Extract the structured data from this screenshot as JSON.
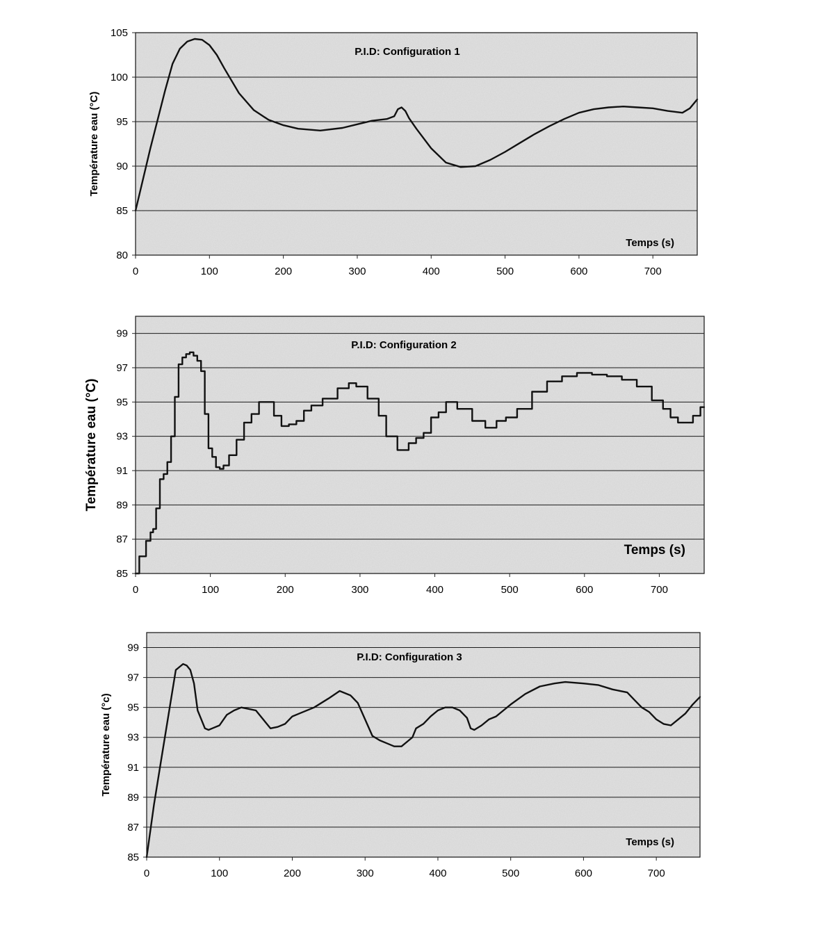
{
  "chart_data": [
    {
      "type": "line",
      "title": "P.I.D: Configuration 1",
      "xlabel": "Temps (s)",
      "ylabel": "Température eau (°C)",
      "xlim": [
        0,
        760
      ],
      "ylim": [
        80,
        105
      ],
      "xticks": [
        0,
        100,
        200,
        300,
        400,
        500,
        600,
        700
      ],
      "yticks": [
        80,
        85,
        90,
        95,
        100,
        105
      ],
      "grid": true,
      "series": [
        {
          "x": [
            0,
            20,
            40,
            50,
            60,
            70,
            80,
            90,
            100,
            110,
            120,
            140,
            160,
            180,
            200,
            220,
            250,
            280,
            300,
            320,
            340,
            350,
            355,
            360,
            365,
            370,
            380,
            400,
            420,
            440,
            460,
            480,
            500,
            520,
            540,
            560,
            580,
            600,
            620,
            640,
            660,
            680,
            700,
            720,
            740,
            750,
            760
          ],
          "y": [
            85.0,
            92.0,
            98.5,
            101.5,
            103.2,
            104.0,
            104.3,
            104.2,
            103.6,
            102.5,
            101.0,
            98.2,
            96.3,
            95.2,
            94.6,
            94.2,
            94.0,
            94.3,
            94.7,
            95.1,
            95.3,
            95.6,
            96.4,
            96.6,
            96.2,
            95.4,
            94.2,
            92.0,
            90.4,
            89.9,
            90.0,
            90.7,
            91.6,
            92.6,
            93.6,
            94.5,
            95.3,
            96.0,
            96.4,
            96.6,
            96.7,
            96.6,
            96.5,
            96.2,
            96.0,
            96.5,
            97.5
          ]
        }
      ]
    },
    {
      "type": "line",
      "title": "P.I.D: Configuration 2",
      "xlabel": "Temps (s)",
      "ylabel": "Température eau (°C)",
      "xlim": [
        0,
        760
      ],
      "ylim": [
        85,
        100
      ],
      "xticks": [
        0,
        100,
        200,
        300,
        400,
        500,
        600,
        700
      ],
      "yticks": [
        85,
        87,
        89,
        91,
        93,
        95,
        97,
        99
      ],
      "grid": true,
      "series": [
        {
          "x": [
            0,
            10,
            18,
            22,
            25,
            30,
            35,
            40,
            45,
            50,
            55,
            60,
            65,
            70,
            75,
            80,
            85,
            90,
            95,
            100,
            105,
            110,
            115,
            120,
            130,
            140,
            150,
            160,
            170,
            180,
            190,
            200,
            210,
            220,
            230,
            240,
            260,
            280,
            290,
            300,
            320,
            330,
            340,
            360,
            370,
            380,
            390,
            400,
            410,
            420,
            440,
            460,
            475,
            490,
            500,
            520,
            540,
            560,
            580,
            600,
            620,
            640,
            660,
            680,
            700,
            710,
            720,
            730,
            740,
            750,
            760
          ],
          "y": [
            85.0,
            86.0,
            86.9,
            87.4,
            87.6,
            88.8,
            90.5,
            90.8,
            91.5,
            93.0,
            95.3,
            97.2,
            97.6,
            97.8,
            97.9,
            97.7,
            97.4,
            96.8,
            94.3,
            92.3,
            91.8,
            91.2,
            91.1,
            91.3,
            91.9,
            92.8,
            93.8,
            94.3,
            95.0,
            95.0,
            94.2,
            93.6,
            93.7,
            93.9,
            94.5,
            94.8,
            95.2,
            95.8,
            96.1,
            95.9,
            95.2,
            94.2,
            93.0,
            92.2,
            92.6,
            92.9,
            93.2,
            94.1,
            94.4,
            95.0,
            94.6,
            93.9,
            93.5,
            93.9,
            94.1,
            94.6,
            95.6,
            96.2,
            96.5,
            96.7,
            96.6,
            96.5,
            96.3,
            95.9,
            95.1,
            94.6,
            94.1,
            93.8,
            93.8,
            94.2,
            94.7
          ]
        }
      ]
    },
    {
      "type": "line",
      "title": "P.I.D: Configuration 3",
      "xlabel": "Temps (s)",
      "ylabel": "Température eau (°c)",
      "xlim": [
        0,
        760
      ],
      "ylim": [
        85,
        100
      ],
      "xticks": [
        0,
        100,
        200,
        300,
        400,
        500,
        600,
        700
      ],
      "yticks": [
        85,
        87,
        89,
        91,
        93,
        95,
        97,
        99
      ],
      "grid": true,
      "series": [
        {
          "x": [
            0,
            10,
            20,
            30,
            40,
            45,
            50,
            55,
            60,
            65,
            70,
            75,
            80,
            85,
            90,
            100,
            110,
            120,
            130,
            140,
            150,
            160,
            170,
            180,
            190,
            200,
            210,
            230,
            250,
            265,
            280,
            290,
            300,
            310,
            320,
            330,
            340,
            350,
            360,
            365,
            370,
            380,
            390,
            400,
            410,
            420,
            430,
            440,
            445,
            450,
            460,
            470,
            480,
            490,
            500,
            520,
            540,
            560,
            575,
            600,
            620,
            640,
            660,
            670,
            680,
            690,
            700,
            710,
            720,
            730,
            740,
            750,
            760
          ],
          "y": [
            85.0,
            88.5,
            91.5,
            94.5,
            97.5,
            97.7,
            97.9,
            97.8,
            97.5,
            96.6,
            94.8,
            94.2,
            93.6,
            93.5,
            93.6,
            93.8,
            94.5,
            94.8,
            95.0,
            94.9,
            94.8,
            94.2,
            93.6,
            93.7,
            93.9,
            94.4,
            94.6,
            95.0,
            95.6,
            96.1,
            95.8,
            95.3,
            94.2,
            93.1,
            92.8,
            92.6,
            92.4,
            92.4,
            92.8,
            93.0,
            93.6,
            93.9,
            94.4,
            94.8,
            95.0,
            95.0,
            94.8,
            94.3,
            93.6,
            93.5,
            93.8,
            94.2,
            94.4,
            94.8,
            95.2,
            95.9,
            96.4,
            96.6,
            96.7,
            96.6,
            96.5,
            96.2,
            96.0,
            95.5,
            95.0,
            94.7,
            94.2,
            93.9,
            93.8,
            94.2,
            94.6,
            95.2,
            95.7
          ]
        }
      ]
    }
  ]
}
